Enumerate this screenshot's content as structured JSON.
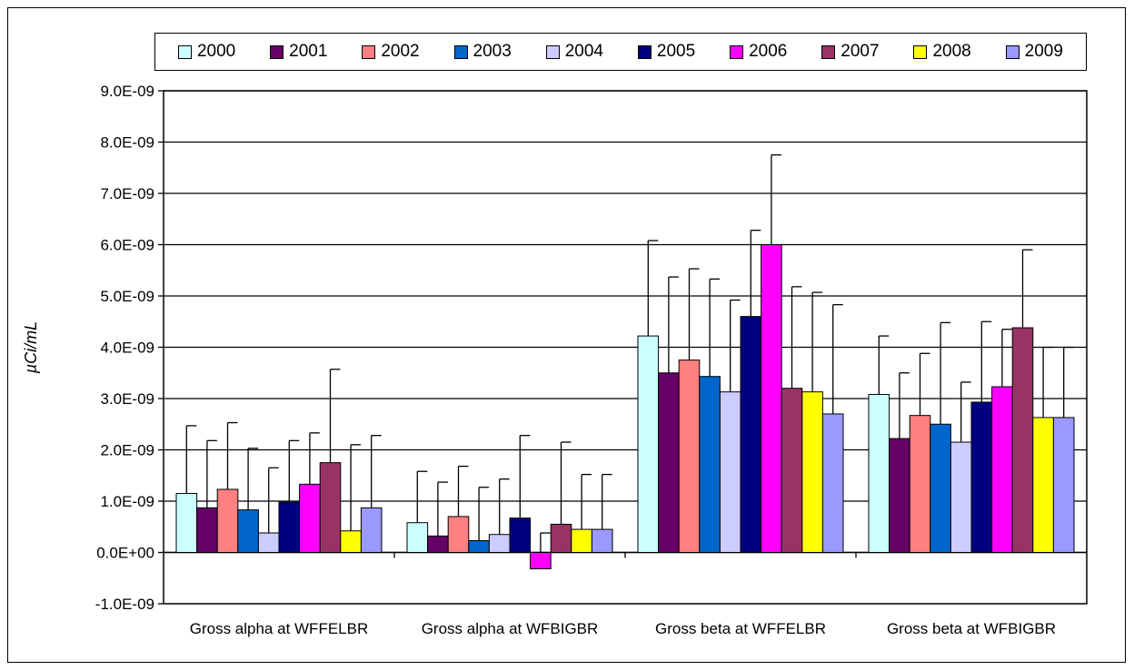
{
  "chart_data": {
    "type": "bar",
    "title": "",
    "xlabel": "",
    "ylabel": "µCi/mL",
    "ylim": [
      -1e-09,
      9e-09
    ],
    "y_ticks": [
      "-1.0E-09",
      "0.0E+00",
      "1.0E-09",
      "2.0E-09",
      "3.0E-09",
      "4.0E-09",
      "5.0E-09",
      "6.0E-09",
      "7.0E-09",
      "8.0E-09",
      "9.0E-09"
    ],
    "y_tick_values": [
      -1e-09,
      0,
      1e-09,
      2e-09,
      3e-09,
      4e-09,
      5e-09,
      6e-09,
      7e-09,
      8e-09,
      9e-09
    ],
    "grid": true,
    "legend_position": "top",
    "categories": [
      "Gross alpha at WFFELBR",
      "Gross alpha at WFBIGBR",
      "Gross beta at WFFELBR",
      "Gross beta at WFBIGBR"
    ],
    "series": [
      {
        "name": "2000",
        "color": "#ccffff",
        "values": [
          1.15e-09,
          5.8e-10,
          4.22e-09,
          3.08e-09
        ],
        "error_upper": [
          2.47e-09,
          1.58e-09,
          6.08e-09,
          4.22e-09
        ]
      },
      {
        "name": "2001",
        "color": "#660066",
        "values": [
          8.7e-10,
          3.2e-10,
          3.5e-09,
          2.22e-09
        ],
        "error_upper": [
          2.18e-09,
          1.37e-09,
          5.37e-09,
          3.5e-09
        ]
      },
      {
        "name": "2002",
        "color": "#ff8080",
        "values": [
          1.23e-09,
          7e-10,
          3.75e-09,
          2.67e-09
        ],
        "error_upper": [
          2.53e-09,
          1.68e-09,
          5.53e-09,
          3.88e-09
        ]
      },
      {
        "name": "2003",
        "color": "#0066cc",
        "values": [
          8.3e-10,
          2.3e-10,
          3.43e-09,
          2.5e-09
        ],
        "error_upper": [
          2.03e-09,
          1.27e-09,
          5.33e-09,
          4.48e-09
        ]
      },
      {
        "name": "2004",
        "color": "#ccccff",
        "values": [
          3.8e-10,
          3.5e-10,
          3.13e-09,
          2.15e-09
        ],
        "error_upper": [
          1.65e-09,
          1.43e-09,
          4.92e-09,
          3.32e-09
        ]
      },
      {
        "name": "2005",
        "color": "#000080",
        "values": [
          9.8e-10,
          6.7e-10,
          4.6e-09,
          2.93e-09
        ],
        "error_upper": [
          2.18e-09,
          2.28e-09,
          6.28e-09,
          4.5e-09
        ]
      },
      {
        "name": "2006",
        "color": "#ff00ff",
        "values": [
          1.33e-09,
          -3.2e-10,
          6e-09,
          3.23e-09
        ],
        "error_upper": [
          2.33e-09,
          3.8e-10,
          7.75e-09,
          4.35e-09
        ]
      },
      {
        "name": "2007",
        "color": "#993366",
        "values": [
          1.75e-09,
          5.5e-10,
          3.2e-09,
          4.38e-09
        ],
        "error_upper": [
          3.57e-09,
          2.15e-09,
          5.18e-09,
          5.9e-09
        ]
      },
      {
        "name": "2008",
        "color": "#ffff00",
        "values": [
          4.2e-10,
          4.5e-10,
          3.13e-09,
          2.63e-09
        ],
        "error_upper": [
          2.1e-09,
          1.52e-09,
          5.07e-09,
          4e-09
        ]
      },
      {
        "name": "2009",
        "color": "#9999ff",
        "values": [
          8.7e-10,
          4.5e-10,
          2.7e-09,
          2.63e-09
        ],
        "error_upper": [
          2.28e-09,
          1.52e-09,
          4.83e-09,
          4e-09
        ]
      }
    ]
  }
}
